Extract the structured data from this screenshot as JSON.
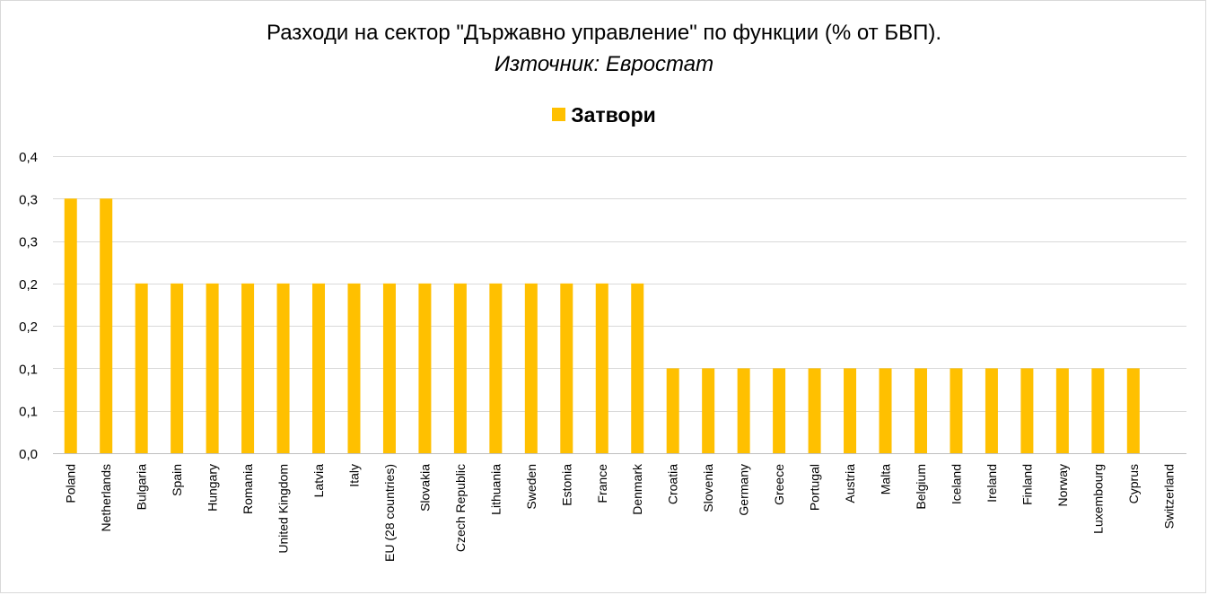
{
  "chart_data": {
    "type": "bar",
    "title": "Разходи на сектор \"Държавно управление\" по функции (% от БВП).",
    "subtitle": "Източник: Евростат",
    "legend_position": "top",
    "grid": true,
    "bar_color": "#ffc000",
    "ylim": [
      0,
      0.35
    ],
    "y_ticks": [
      0,
      0.05,
      0.1,
      0.15,
      0.2,
      0.25,
      0.3,
      0.35
    ],
    "y_tick_labels": [
      "0,0",
      "0,1",
      "0,1",
      "0,2",
      "0,2",
      "0,3",
      "0,3",
      "0,4"
    ],
    "categories": [
      "Poland",
      "Netherlands",
      "Bulgaria",
      "Spain",
      "Hungary",
      "Romania",
      "United Kingdom",
      "Latvia",
      "Italy",
      "EU (28 countries)",
      "Slovakia",
      "Czech Republic",
      "Lithuania",
      "Sweden",
      "Estonia",
      "France",
      "Denmark",
      "Croatia",
      "Slovenia",
      "Germany",
      "Greece",
      "Portugal",
      "Austria",
      "Malta",
      "Belgium",
      "Iceland",
      "Ireland",
      "Finland",
      "Norway",
      "Luxembourg",
      "Cyprus",
      "Switzerland"
    ],
    "series": [
      {
        "name": "Затвори",
        "values": [
          0.3,
          0.3,
          0.2,
          0.2,
          0.2,
          0.2,
          0.2,
          0.2,
          0.2,
          0.2,
          0.2,
          0.2,
          0.2,
          0.2,
          0.2,
          0.2,
          0.2,
          0.1,
          0.1,
          0.1,
          0.1,
          0.1,
          0.1,
          0.1,
          0.1,
          0.1,
          0.1,
          0.1,
          0.1,
          0.1,
          0.1,
          0.0
        ]
      }
    ]
  }
}
